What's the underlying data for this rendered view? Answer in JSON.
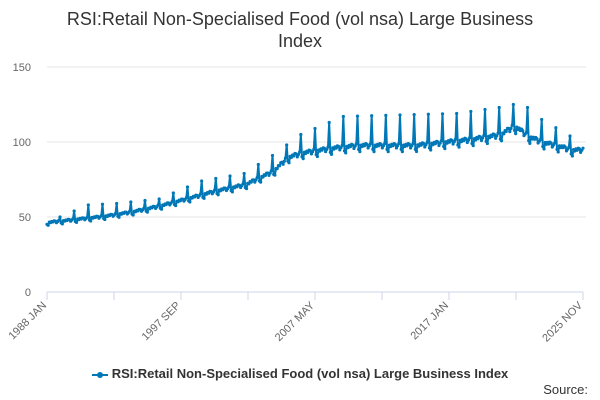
{
  "chart_data": {
    "type": "line",
    "title_lines": [
      "RSI:Retail Non-Specialised Food (vol nsa) Large Business",
      "Index"
    ],
    "xlabel": "",
    "ylabel": "",
    "x_tick_labels": [
      "1988 JAN",
      "1997 SEP",
      "2007 MAY",
      "2017 JAN",
      "2025 NOV"
    ],
    "x_range": [
      "1988-01",
      "2025-11"
    ],
    "ylim": [
      0,
      150
    ],
    "y_ticks": [
      0,
      50,
      100,
      150
    ],
    "grid": "horizontal",
    "legend_position": "bottom",
    "series": [
      {
        "name": "RSI:Retail Non-Specialised Food (vol nsa) Large Business Index",
        "color": "#0077b6",
        "frequency": "monthly",
        "start": "1988-01",
        "end": "2025-11",
        "yearly_base": [
          {
            "year": 1988,
            "value": 46
          },
          {
            "year": 1990,
            "value": 48
          },
          {
            "year": 1992,
            "value": 50
          },
          {
            "year": 1994,
            "value": 53
          },
          {
            "year": 1996,
            "value": 57
          },
          {
            "year": 1998,
            "value": 62
          },
          {
            "year": 2000,
            "value": 67
          },
          {
            "year": 2002,
            "value": 71
          },
          {
            "year": 2004,
            "value": 80
          },
          {
            "year": 2005,
            "value": 89
          },
          {
            "year": 2006,
            "value": 92
          },
          {
            "year": 2008,
            "value": 95
          },
          {
            "year": 2010,
            "value": 97
          },
          {
            "year": 2014,
            "value": 97
          },
          {
            "year": 2018,
            "value": 101
          },
          {
            "year": 2020,
            "value": 104
          },
          {
            "year": 2021,
            "value": 110
          },
          {
            "year": 2022,
            "value": 103
          },
          {
            "year": 2023,
            "value": 99
          },
          {
            "year": 2024,
            "value": 97
          },
          {
            "year": 2025,
            "value": 94
          }
        ],
        "december_peaks": [
          {
            "year": 1988,
            "value": 50
          },
          {
            "year": 1990,
            "value": 58
          },
          {
            "year": 1992,
            "value": 59
          },
          {
            "year": 1995,
            "value": 62
          },
          {
            "year": 1998,
            "value": 74
          },
          {
            "year": 2001,
            "value": 79
          },
          {
            "year": 2003,
            "value": 91
          },
          {
            "year": 2005,
            "value": 105
          },
          {
            "year": 2008,
            "value": 117
          },
          {
            "year": 2012,
            "value": 118
          },
          {
            "year": 2016,
            "value": 119
          },
          {
            "year": 2019,
            "value": 123
          },
          {
            "year": 2020,
            "value": 125
          },
          {
            "year": 2021,
            "value": 123
          },
          {
            "year": 2022,
            "value": 115
          },
          {
            "year": 2024,
            "value": 104
          }
        ]
      }
    ]
  },
  "source_label": "Source:"
}
